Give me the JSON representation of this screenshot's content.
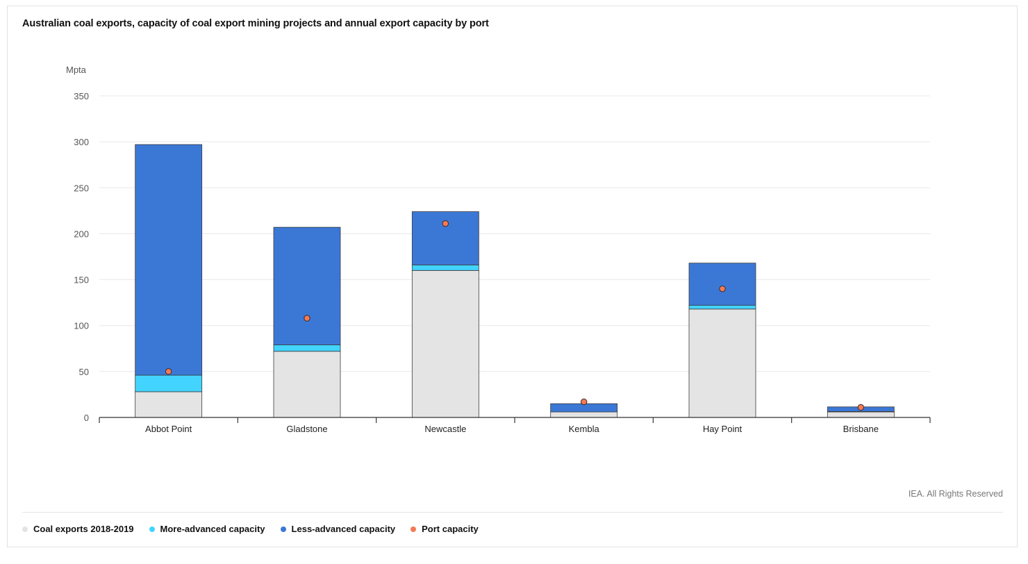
{
  "chart_data": {
    "type": "bar",
    "stacked": true,
    "title": "Australian coal exports, capacity of coal export mining projects and annual export capacity by port",
    "ylabel": "Mpta",
    "ylim": [
      0,
      350
    ],
    "yticks": [
      0,
      50,
      100,
      150,
      200,
      250,
      300,
      350
    ],
    "grid": true,
    "legend_position": "bottom-left",
    "categories": [
      "Abbot Point",
      "Gladstone",
      "Newcastle",
      "Kembla",
      "Hay Point",
      "Brisbane"
    ],
    "series": [
      {
        "name": "Coal exports 2018-2019",
        "type": "bar",
        "color": "#e4e4e4",
        "values": [
          28,
          72,
          160,
          6,
          118,
          6
        ]
      },
      {
        "name": "More-advanced capacity",
        "type": "bar",
        "color": "#42d4ff",
        "values": [
          18,
          7,
          6,
          0,
          4,
          0.5
        ]
      },
      {
        "name": "Less-advanced capacity",
        "type": "bar",
        "color": "#3b78d6",
        "values": [
          251,
          128,
          58,
          9,
          46,
          5
        ]
      },
      {
        "name": "Port capacity",
        "type": "scatter",
        "color": "#f47a55",
        "values": [
          50,
          108,
          211,
          17,
          140,
          11
        ]
      }
    ],
    "credit": "IEA. All Rights Reserved"
  }
}
